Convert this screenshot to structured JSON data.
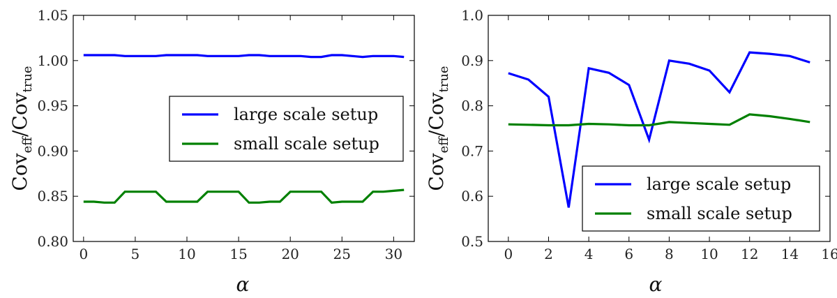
{
  "chart_data": [
    {
      "type": "line",
      "title": "",
      "xlabel": "α",
      "ylabel": {
        "base": "Cov",
        "sub_num": "eff",
        "sub_den": "true"
      },
      "xlim": [
        -1,
        32
      ],
      "ylim": [
        0.8,
        1.05
      ],
      "xticks": [
        "0",
        "5",
        "10",
        "15",
        "20",
        "25",
        "30"
      ],
      "xtick_values": [
        0,
        5,
        10,
        15,
        20,
        25,
        30
      ],
      "yticks": [
        "0.80",
        "0.85",
        "0.90",
        "0.95",
        "1.00",
        "1.05"
      ],
      "ytick_values": [
        0.8,
        0.85,
        0.9,
        0.95,
        1.0,
        1.05
      ],
      "legend_position": "center-right",
      "series": [
        {
          "name": "large scale setup",
          "color": "#0000ff",
          "x": [
            0,
            1,
            2,
            3,
            4,
            5,
            6,
            7,
            8,
            9,
            10,
            11,
            12,
            13,
            14,
            15,
            16,
            17,
            18,
            19,
            20,
            21,
            22,
            23,
            24,
            25,
            26,
            27,
            28,
            29,
            30,
            31
          ],
          "y": [
            1.006,
            1.006,
            1.006,
            1.006,
            1.005,
            1.005,
            1.005,
            1.005,
            1.006,
            1.006,
            1.006,
            1.006,
            1.005,
            1.005,
            1.005,
            1.005,
            1.006,
            1.006,
            1.005,
            1.005,
            1.005,
            1.005,
            1.004,
            1.004,
            1.006,
            1.006,
            1.005,
            1.004,
            1.005,
            1.005,
            1.005,
            1.004
          ]
        },
        {
          "name": "small scale setup",
          "color": "#008000",
          "x": [
            0,
            1,
            2,
            3,
            4,
            5,
            6,
            7,
            8,
            9,
            10,
            11,
            12,
            13,
            14,
            15,
            16,
            17,
            18,
            19,
            20,
            21,
            22,
            23,
            24,
            25,
            26,
            27,
            28,
            29,
            30,
            31
          ],
          "y": [
            0.844,
            0.844,
            0.843,
            0.843,
            0.855,
            0.855,
            0.855,
            0.855,
            0.844,
            0.844,
            0.844,
            0.844,
            0.855,
            0.855,
            0.855,
            0.855,
            0.843,
            0.843,
            0.844,
            0.844,
            0.855,
            0.855,
            0.855,
            0.855,
            0.843,
            0.844,
            0.844,
            0.844,
            0.855,
            0.855,
            0.856,
            0.857
          ]
        }
      ]
    },
    {
      "type": "line",
      "title": "",
      "xlabel": "α",
      "ylabel": {
        "base": "Cov",
        "sub_num": "eff",
        "sub_den": "true"
      },
      "xlim": [
        -1,
        16
      ],
      "ylim": [
        0.5,
        1.0
      ],
      "xticks": [
        "0",
        "2",
        "4",
        "6",
        "8",
        "10",
        "12",
        "14",
        "16"
      ],
      "xtick_values": [
        0,
        2,
        4,
        6,
        8,
        10,
        12,
        14,
        16
      ],
      "yticks": [
        "0.5",
        "0.6",
        "0.7",
        "0.8",
        "0.9",
        "1.0"
      ],
      "ytick_values": [
        0.5,
        0.6,
        0.7,
        0.8,
        0.9,
        1.0
      ],
      "legend_position": "lower-right",
      "series": [
        {
          "name": "large scale setup",
          "color": "#0000ff",
          "x": [
            0,
            1,
            2,
            3,
            4,
            5,
            6,
            7,
            8,
            9,
            10,
            11,
            12,
            13,
            14,
            15
          ],
          "y": [
            0.872,
            0.858,
            0.82,
            0.575,
            0.883,
            0.873,
            0.846,
            0.725,
            0.9,
            0.893,
            0.878,
            0.83,
            0.918,
            0.915,
            0.91,
            0.896
          ]
        },
        {
          "name": "small scale setup",
          "color": "#008000",
          "x": [
            0,
            1,
            2,
            3,
            4,
            5,
            6,
            7,
            8,
            9,
            10,
            11,
            12,
            13,
            14,
            15
          ],
          "y": [
            0.759,
            0.758,
            0.757,
            0.757,
            0.76,
            0.759,
            0.757,
            0.757,
            0.764,
            0.762,
            0.76,
            0.758,
            0.781,
            0.777,
            0.771,
            0.764
          ]
        }
      ]
    }
  ]
}
